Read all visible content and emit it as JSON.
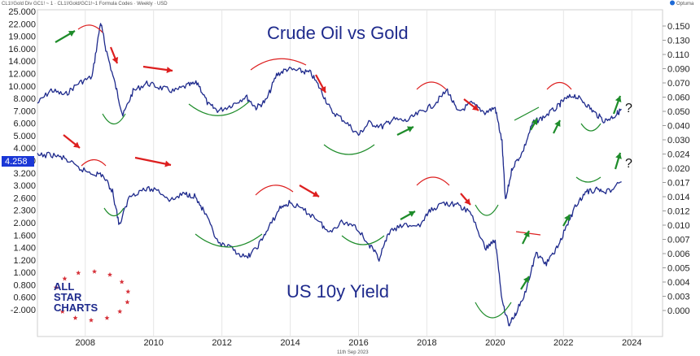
{
  "header_text": "CL1!/Gold Div GC1! ~ 1 · CL1!/Gold/GC1!~1 Formula Codes · Weekly · USD",
  "brand": "Optuma",
  "date_label": "11th Sep 2023",
  "logo": {
    "line1": "ALL",
    "line2": "STAR",
    "line3": "CHARTS"
  },
  "current_value_badge": "4.258",
  "question_marks": [
    "?",
    "?"
  ],
  "colors": {
    "series": "#1e2a8c",
    "red_arrow": "#dd1f1f",
    "green_arrow": "#1e8c2a",
    "badge": "#1a37d6"
  },
  "chart_data": {
    "type": "line",
    "y_scale": "log",
    "x_range": [
      2006.6,
      2024.9
    ],
    "x_ticks": [
      "2008",
      "2010",
      "2012",
      "2014",
      "2016",
      "2018",
      "2020",
      "2022",
      "2024"
    ],
    "left_axis_ticks": [
      "25.000",
      "22.000",
      "19.000",
      "16.000",
      "14.000",
      "12.000",
      "10.000",
      "8.000",
      "7.000",
      "6.000",
      "5.000",
      "4.000",
      "3.600",
      "3.200",
      "3.000",
      "2.600",
      "2.300",
      "2.000",
      "1.600",
      "1.400",
      "1.200",
      "1.000",
      "0.800",
      "0.600",
      "-2.000"
    ],
    "right_axis_ticks": [
      "0.150",
      "0.130",
      "0.110",
      "0.090",
      "0.070",
      "0.060",
      "0.050",
      "0.040",
      "0.030",
      "0.024",
      "0.020",
      "0.017",
      "0.014",
      "0.012",
      "0.010",
      "0.007",
      "0.006",
      "0.005",
      "0.004",
      "0.003",
      "0.000"
    ],
    "series": [
      {
        "name": "Crude Oil vs Gold",
        "points": [
          [
            2006.6,
            0.052
          ],
          [
            2007.0,
            0.062
          ],
          [
            2007.4,
            0.058
          ],
          [
            2007.8,
            0.068
          ],
          [
            2008.2,
            0.074
          ],
          [
            2008.45,
            0.154
          ],
          [
            2008.6,
            0.108
          ],
          [
            2008.9,
            0.064
          ],
          [
            2009.1,
            0.044
          ],
          [
            2009.4,
            0.061
          ],
          [
            2009.8,
            0.068
          ],
          [
            2010.2,
            0.064
          ],
          [
            2010.6,
            0.061
          ],
          [
            2011.0,
            0.066
          ],
          [
            2011.3,
            0.068
          ],
          [
            2011.6,
            0.051
          ],
          [
            2011.9,
            0.047
          ],
          [
            2012.3,
            0.051
          ],
          [
            2012.7,
            0.057
          ],
          [
            2013.0,
            0.049
          ],
          [
            2013.3,
            0.054
          ],
          [
            2013.6,
            0.076
          ],
          [
            2013.9,
            0.082
          ],
          [
            2014.3,
            0.08
          ],
          [
            2014.6,
            0.078
          ],
          [
            2014.9,
            0.062
          ],
          [
            2015.2,
            0.047
          ],
          [
            2015.6,
            0.041
          ],
          [
            2016.0,
            0.034
          ],
          [
            2016.3,
            0.04
          ],
          [
            2016.7,
            0.038
          ],
          [
            2017.0,
            0.042
          ],
          [
            2017.4,
            0.041
          ],
          [
            2017.8,
            0.046
          ],
          [
            2018.2,
            0.051
          ],
          [
            2018.6,
            0.062
          ],
          [
            2018.9,
            0.046
          ],
          [
            2019.3,
            0.052
          ],
          [
            2019.7,
            0.046
          ],
          [
            2020.0,
            0.049
          ],
          [
            2020.2,
            0.031
          ],
          [
            2020.3,
            0.014
          ],
          [
            2020.5,
            0.022
          ],
          [
            2020.8,
            0.027
          ],
          [
            2021.1,
            0.04
          ],
          [
            2021.4,
            0.043
          ],
          [
            2021.8,
            0.049
          ],
          [
            2022.0,
            0.054
          ],
          [
            2022.3,
            0.058
          ],
          [
            2022.6,
            0.053
          ],
          [
            2022.9,
            0.046
          ],
          [
            2023.2,
            0.041
          ],
          [
            2023.5,
            0.044
          ],
          [
            2023.7,
            0.048
          ]
        ]
      },
      {
        "name": "US 10y Yield",
        "points": [
          [
            2006.6,
            0.0285
          ],
          [
            2007.0,
            0.029
          ],
          [
            2007.4,
            0.0275
          ],
          [
            2007.8,
            0.024
          ],
          [
            2008.2,
            0.0225
          ],
          [
            2008.5,
            0.022
          ],
          [
            2008.8,
            0.0175
          ],
          [
            2009.0,
            0.011
          ],
          [
            2009.3,
            0.0165
          ],
          [
            2009.7,
            0.018
          ],
          [
            2010.1,
            0.018
          ],
          [
            2010.5,
            0.0155
          ],
          [
            2010.9,
            0.017
          ],
          [
            2011.2,
            0.0165
          ],
          [
            2011.5,
            0.013
          ],
          [
            2011.9,
            0.0085
          ],
          [
            2012.3,
            0.008
          ],
          [
            2012.7,
            0.007
          ],
          [
            2013.0,
            0.008
          ],
          [
            2013.3,
            0.01
          ],
          [
            2013.7,
            0.014
          ],
          [
            2014.0,
            0.015
          ],
          [
            2014.4,
            0.0135
          ],
          [
            2014.8,
            0.012
          ],
          [
            2015.1,
            0.01
          ],
          [
            2015.5,
            0.0115
          ],
          [
            2015.9,
            0.011
          ],
          [
            2016.3,
            0.0085
          ],
          [
            2016.6,
            0.007
          ],
          [
            2016.9,
            0.01
          ],
          [
            2017.3,
            0.011
          ],
          [
            2017.8,
            0.011
          ],
          [
            2018.1,
            0.0135
          ],
          [
            2018.5,
            0.015
          ],
          [
            2018.9,
            0.0145
          ],
          [
            2019.3,
            0.013
          ],
          [
            2019.7,
            0.008
          ],
          [
            2020.0,
            0.009
          ],
          [
            2020.2,
            0.004
          ],
          [
            2020.4,
            0.0028
          ],
          [
            2020.6,
            0.0033
          ],
          [
            2020.9,
            0.0045
          ],
          [
            2021.2,
            0.0075
          ],
          [
            2021.5,
            0.0065
          ],
          [
            2021.8,
            0.008
          ],
          [
            2022.1,
            0.011
          ],
          [
            2022.4,
            0.015
          ],
          [
            2022.7,
            0.0175
          ],
          [
            2023.0,
            0.018
          ],
          [
            2023.3,
            0.0175
          ],
          [
            2023.7,
            0.02
          ]
        ]
      }
    ],
    "title": "",
    "xlabel": "",
    "ylabel": ""
  }
}
